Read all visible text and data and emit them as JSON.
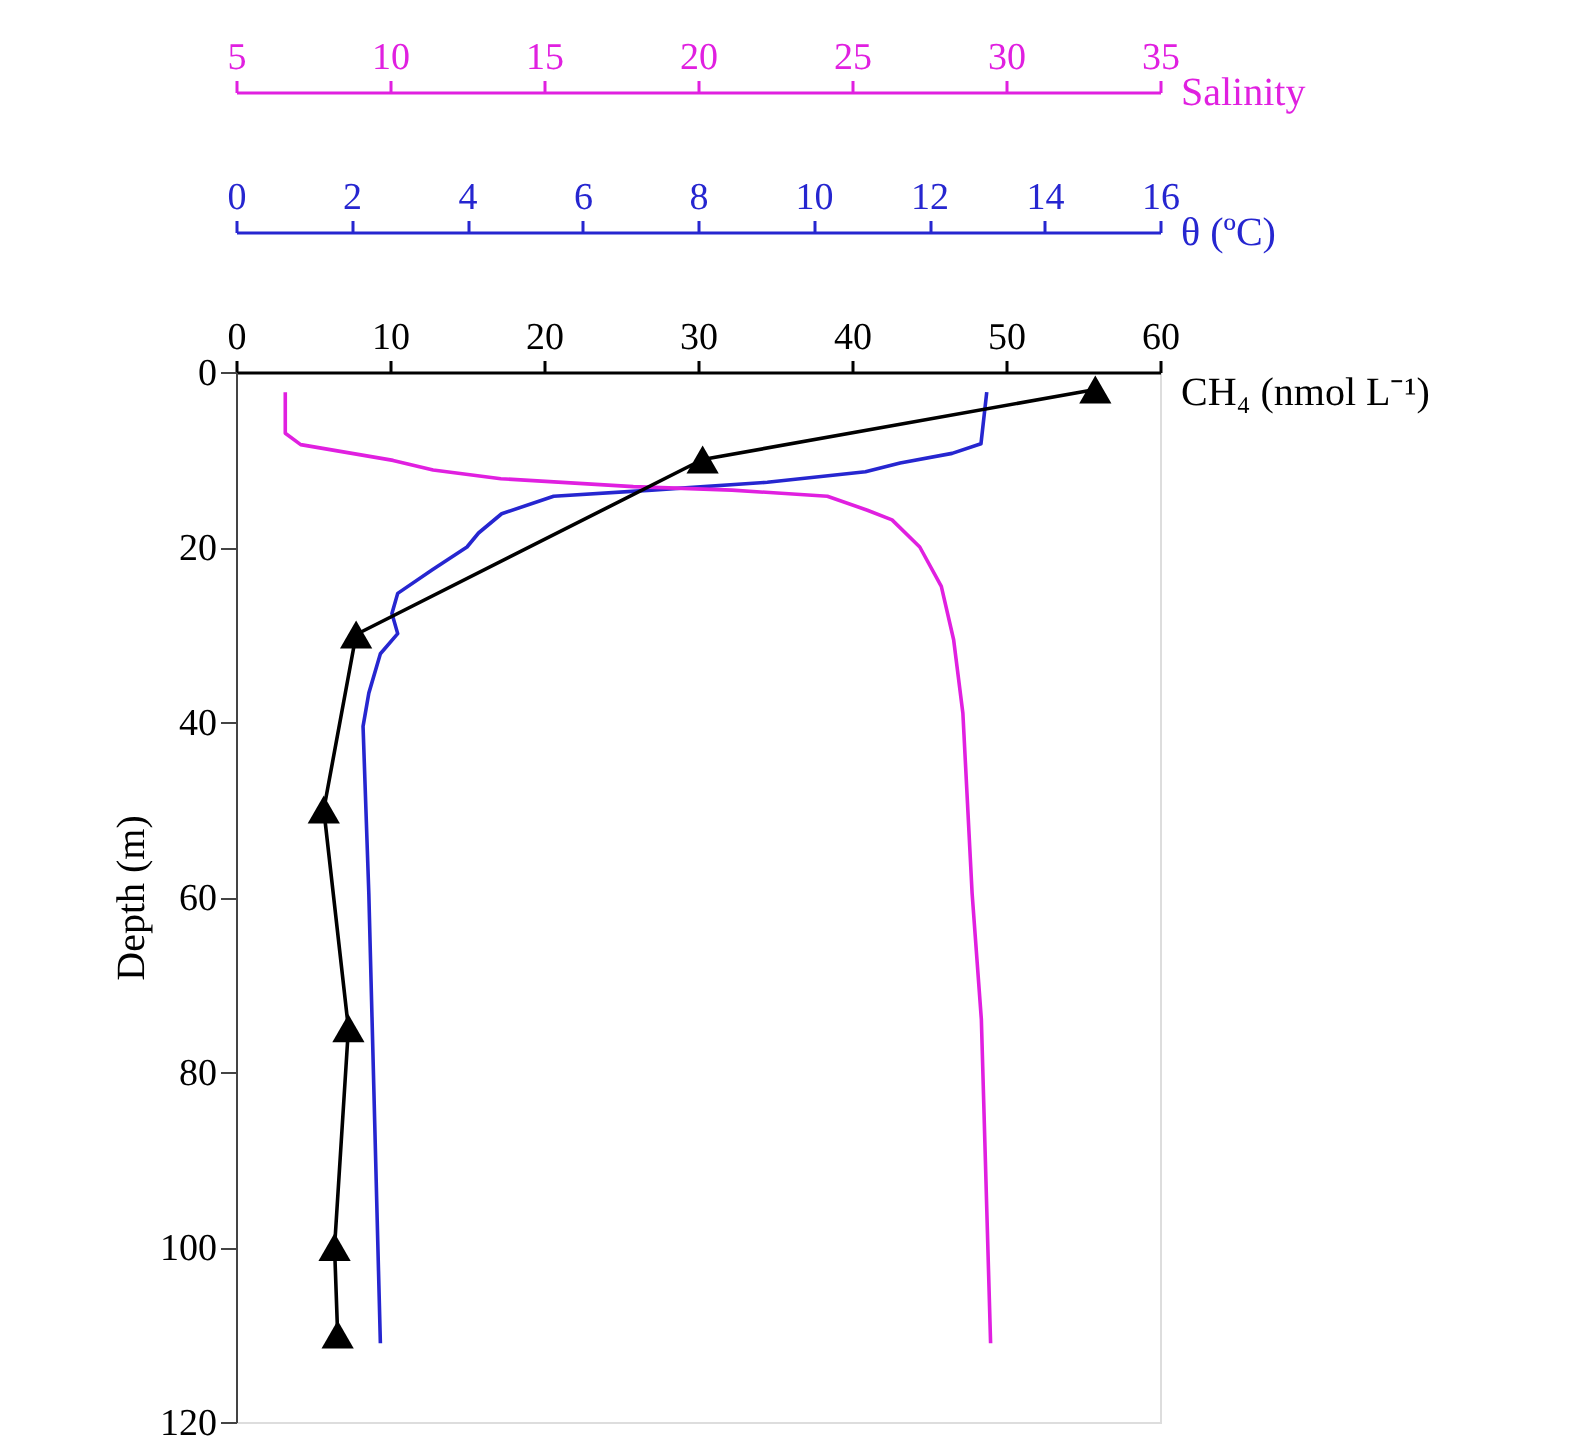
{
  "chart_data": [
    {
      "type": "line",
      "ylabel": "Depth (m)",
      "ylim": [
        120,
        0
      ],
      "yticks": [
        0,
        20,
        40,
        60,
        80,
        100,
        120
      ],
      "xlabel": "CH₄ (nmol L⁻¹)",
      "xlim": [
        0,
        60
      ],
      "xticks": [
        0,
        10,
        20,
        30,
        40,
        50,
        60
      ],
      "grid": false,
      "line_style": "solid",
      "marker": "triangle",
      "series": [
        {
          "color": "#000000",
          "x": [
            55.8,
            30.3,
            7.8,
            5.7,
            7.3,
            6.4,
            6.6
          ],
          "values": [
            2,
            10,
            30,
            50,
            75,
            100,
            110
          ]
        }
      ]
    },
    {
      "type": "line",
      "ylim": [
        120,
        0
      ],
      "tick_labels": "x",
      "xlabel": "θ (ºC)",
      "xlim": [
        0,
        16
      ],
      "xticks": [
        0,
        2,
        4,
        6,
        8,
        10,
        12,
        14,
        16
      ],
      "grid": false,
      "line_style": "solid",
      "series": [
        {
          "color": "#2626d0",
          "x": [
            13.0,
            12.9,
            12.4,
            11.5,
            10.9,
            9.2,
            7.2,
            5.5,
            4.6,
            4.2,
            4.0,
            3.4,
            2.8,
            2.7,
            2.8,
            2.5,
            2.3,
            2.2,
            2.3,
            2.5
          ],
          "values": [
            2.3,
            8.2,
            9.3,
            10.4,
            11.4,
            12.6,
            13.5,
            14.2,
            16.2,
            18.4,
            20,
            22.6,
            25.3,
            27.6,
            29.9,
            32.2,
            36.7,
            40.5,
            59.6,
            111
          ]
        }
      ]
    },
    {
      "type": "line",
      "ylim": [
        120,
        0
      ],
      "tick_labels": "x",
      "xlabel": "Salinity",
      "xlim": [
        5,
        35
      ],
      "xticks": [
        5,
        10,
        15,
        20,
        25,
        30,
        35
      ],
      "grid": false,
      "line_style": "solid",
      "series": [
        {
          "color": "#e020e0",
          "x": [
            6.6,
            6.6,
            7.1,
            10.1,
            11.4,
            13.6,
            17.9,
            21.1,
            24.2,
            25.5,
            26.3,
            27.2,
            27.9,
            28.3,
            28.6,
            28.9,
            29.2,
            29.5
          ],
          "values": [
            2.3,
            7.0,
            8.3,
            10.1,
            11.2,
            12.2,
            13.1,
            13.5,
            14.2,
            15.8,
            16.9,
            20,
            24.5,
            30.6,
            39,
            59.6,
            74,
            111
          ]
        }
      ]
    }
  ]
}
